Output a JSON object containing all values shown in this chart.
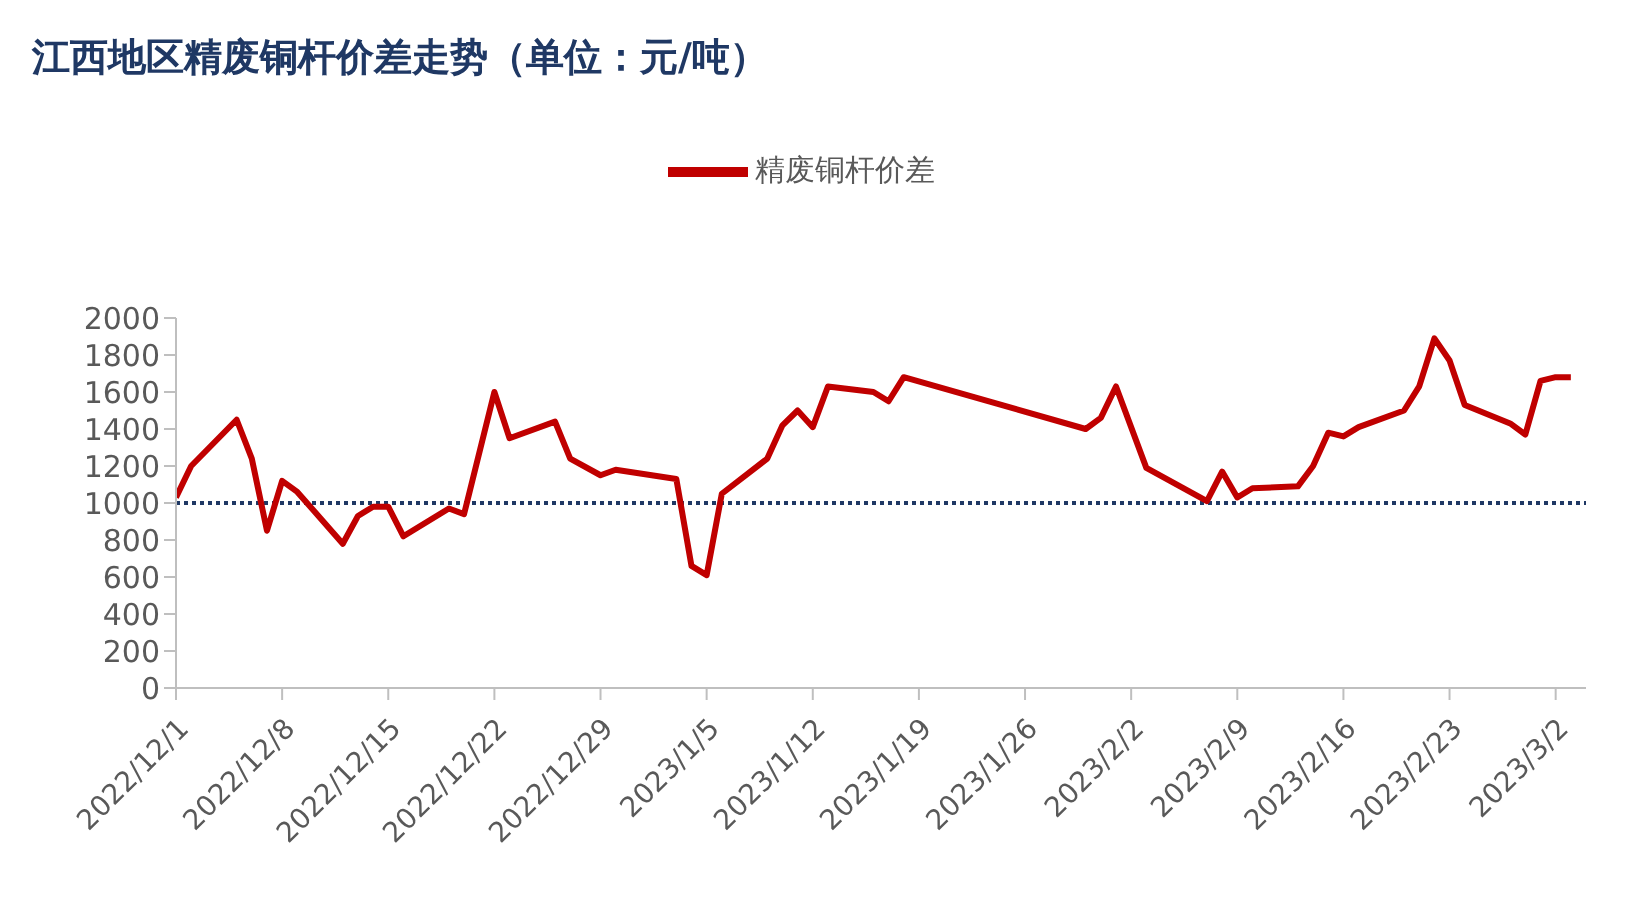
{
  "chart_data": {
    "type": "line",
    "title": "江西地区精废铜杆价差走势（单位：元/吨）",
    "x": [
      "2022-12-01",
      "2022-12-02",
      "2022-12-05",
      "2022-12-06",
      "2022-12-07",
      "2022-12-08",
      "2022-12-09",
      "2022-12-12",
      "2022-12-13",
      "2022-12-14",
      "2022-12-15",
      "2022-12-16",
      "2022-12-19",
      "2022-12-20",
      "2022-12-22",
      "2022-12-23",
      "2022-12-26",
      "2022-12-27",
      "2022-12-29",
      "2022-12-30",
      "2023-01-03",
      "2023-01-04",
      "2023-01-05",
      "2023-01-06",
      "2023-01-09",
      "2023-01-10",
      "2023-01-11",
      "2023-01-12",
      "2023-01-13",
      "2023-01-16",
      "2023-01-17",
      "2023-01-18",
      "2023-01-30",
      "2023-01-31",
      "2023-02-01",
      "2023-02-03",
      "2023-02-07",
      "2023-02-08",
      "2023-02-09",
      "2023-02-10",
      "2023-02-13",
      "2023-02-14",
      "2023-02-15",
      "2023-02-16",
      "2023-02-17",
      "2023-02-20",
      "2023-02-21",
      "2023-02-22",
      "2023-02-23",
      "2023-02-24",
      "2023-02-27",
      "2023-02-28",
      "2023-03-01",
      "2023-03-02",
      "2023-03-03"
    ],
    "series": [
      {
        "name": "精废铜杆价差",
        "color": "#c00000",
        "values": [
          1030,
          1200,
          1450,
          1240,
          850,
          1120,
          1060,
          780,
          930,
          980,
          980,
          820,
          970,
          940,
          1600,
          1350,
          1440,
          1240,
          1150,
          1180,
          1130,
          660,
          610,
          1050,
          1240,
          1420,
          1500,
          1410,
          1630,
          1600,
          1550,
          1680,
          1400,
          1460,
          1630,
          1190,
          1010,
          1170,
          1030,
          1080,
          1090,
          1200,
          1380,
          1360,
          1410,
          1500,
          1630,
          1890,
          1770,
          1530,
          1430,
          1370,
          1660,
          1680,
          1680
        ]
      }
    ],
    "xlim": [
      "2022-12-01",
      "2023-03-04"
    ],
    "xticks": [
      {
        "value": "2022-12-01",
        "label": "2022/12/1"
      },
      {
        "value": "2022-12-08",
        "label": "2022/12/8"
      },
      {
        "value": "2022-12-15",
        "label": "2022/12/15"
      },
      {
        "value": "2022-12-22",
        "label": "2022/12/22"
      },
      {
        "value": "2022-12-29",
        "label": "2022/12/29"
      },
      {
        "value": "2023-01-05",
        "label": "2023/1/5"
      },
      {
        "value": "2023-01-12",
        "label": "2023/1/12"
      },
      {
        "value": "2023-01-19",
        "label": "2023/1/19"
      },
      {
        "value": "2023-01-26",
        "label": "2023/1/26"
      },
      {
        "value": "2023-02-02",
        "label": "2023/2/2"
      },
      {
        "value": "2023-02-09",
        "label": "2023/2/9"
      },
      {
        "value": "2023-02-16",
        "label": "2023/2/16"
      },
      {
        "value": "2023-02-23",
        "label": "2023/2/23"
      },
      {
        "value": "2023-03-02",
        "label": "2023/3/2"
      }
    ],
    "ylim": [
      0,
      2000
    ],
    "yticks": [
      0,
      200,
      400,
      600,
      800,
      1000,
      1200,
      1400,
      1600,
      1800,
      2000
    ],
    "ref_lines": [
      {
        "axis": "y",
        "value": 1000,
        "color": "#1f3864",
        "line_style": "dotted"
      }
    ],
    "legend": "top",
    "marker": "none",
    "line_style": "solid"
  }
}
